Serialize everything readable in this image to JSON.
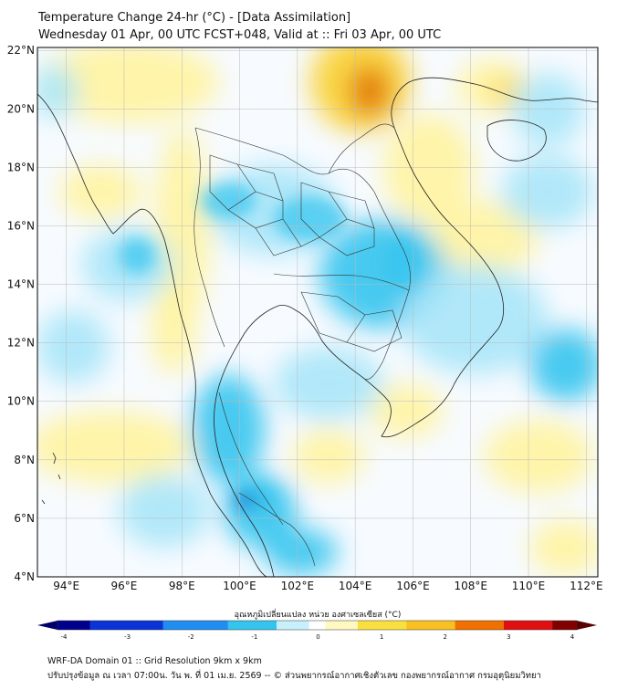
{
  "header": {
    "title_line1": "Temperature Change 24-hr (°C) - [Data Assimilation]",
    "title_line2": "Wednesday 01 Apr, 00 UTC FCST+048, Valid at :: Fri 03 Apr, 00 UTC"
  },
  "map": {
    "lon_labels": [
      "94°E",
      "96°E",
      "98°E",
      "100°E",
      "102°E",
      "104°E",
      "106°E",
      "108°E",
      "110°E",
      "112°E"
    ],
    "lat_labels": [
      "22°N",
      "20°N",
      "18°N",
      "16°N",
      "14°N",
      "12°N",
      "10°N",
      "8°N",
      "6°N",
      "4°N"
    ],
    "colors": {
      "cold_strong": "#0000a0",
      "cold": "#35c4ee",
      "cold_light": "#a8e6f8",
      "neutral": "#f7fbff",
      "warm_light": "#fff3a0",
      "warm": "#f9d030",
      "warm_strong": "#e07000",
      "hot": "#7a0000"
    }
  },
  "colorbar": {
    "label": "อุณหภูมิเปลี่ยนแปลง หน่วย องศาเซลเซียส (°C)",
    "ticks": [
      "-4",
      "-3",
      "-2",
      "-1",
      "0",
      "1",
      "2",
      "3",
      "4"
    ]
  },
  "footer": {
    "line1": "WRF-DA Domain 01 :: Grid Resolution 9km x 9km",
    "line2": "ปรับปรุงข้อมูล ณ เวลา 07:00น. วัน พ. ที่ 01 เม.ย. 2569 -- © ส่วนพยากรณ์อากาศเชิงตัวเลข กองพยากรณ์อากาศ กรมอุตุนิยมวิทยา"
  }
}
